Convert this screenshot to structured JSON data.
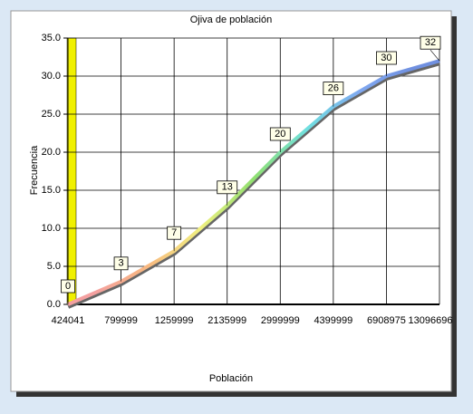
{
  "chart_data": {
    "type": "line",
    "title": "Ojiva de población",
    "x_label": "Población",
    "y_label": "Frecuencia",
    "categories": [
      "424041",
      "799999",
      "1259999",
      "2135999",
      "2999999",
      "4399999",
      "6908975",
      "13096696"
    ],
    "values": [
      0,
      3,
      7,
      13,
      20,
      26,
      30,
      32
    ],
    "segment_colors": [
      "#f4a0a0",
      "#f8b880",
      "#f0f080",
      "#90e070",
      "#70e0e0",
      "#80a8f0",
      "#7090e0"
    ],
    "ylim": [
      0,
      35
    ],
    "yticks": [
      {
        "value": 0,
        "label": "0.0"
      },
      {
        "value": 5,
        "label": "5.0"
      },
      {
        "value": 10,
        "label": "10.0"
      },
      {
        "value": 15,
        "label": "15.0"
      },
      {
        "value": 20,
        "label": "20.0"
      },
      {
        "value": 25,
        "label": "25.0"
      },
      {
        "value": 30,
        "label": "30.0"
      },
      {
        "value": 35,
        "label": "35.0"
      }
    ],
    "grid": true,
    "wall_color": "#f0f000"
  }
}
